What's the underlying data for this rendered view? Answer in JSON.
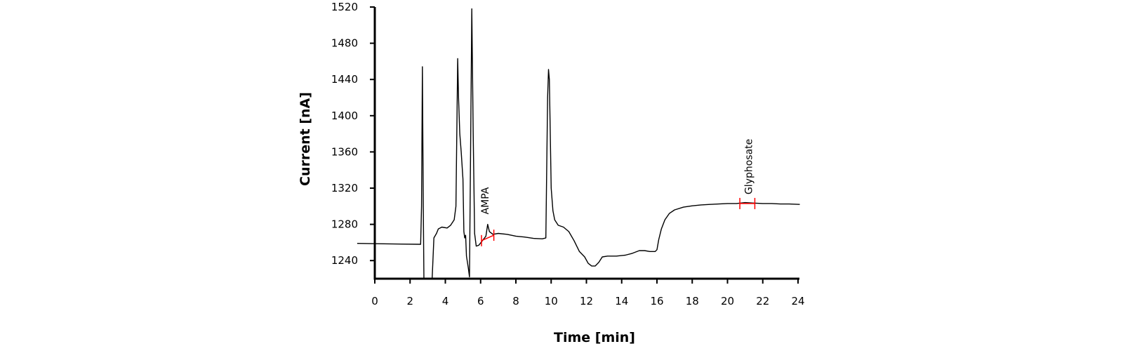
{
  "chart_data": {
    "type": "line",
    "title": "",
    "xlabel": "Time [min]",
    "ylabel": "Current [nA]",
    "xlim": [
      0,
      24
    ],
    "ylim": [
      1220,
      1520
    ],
    "xticks": [
      0,
      2,
      4,
      6,
      8,
      10,
      12,
      14,
      16,
      18,
      20,
      22,
      24
    ],
    "yticks": [
      1240,
      1280,
      1320,
      1360,
      1400,
      1440,
      1480,
      1520
    ],
    "grid": false,
    "series": [
      {
        "color": "#000000",
        "points": [
          [
            -1.0,
            1259
          ],
          [
            0.5,
            1258.5
          ],
          [
            1.5,
            1258.2
          ],
          [
            2.6,
            1258
          ],
          [
            2.65,
            1300
          ],
          [
            2.7,
            1454
          ],
          [
            2.75,
            1300
          ],
          [
            2.8,
            1180
          ],
          [
            3.2,
            1180
          ],
          [
            3.25,
            1220
          ],
          [
            3.35,
            1265
          ],
          [
            3.5,
            1270
          ],
          [
            3.6,
            1275
          ],
          [
            3.8,
            1277
          ],
          [
            4.1,
            1276
          ],
          [
            4.3,
            1279
          ],
          [
            4.5,
            1285
          ],
          [
            4.6,
            1300
          ],
          [
            4.7,
            1463
          ],
          [
            4.75,
            1420
          ],
          [
            4.82,
            1380
          ],
          [
            4.9,
            1360
          ],
          [
            5.0,
            1330
          ],
          [
            5.05,
            1272
          ],
          [
            5.1,
            1265
          ],
          [
            5.15,
            1268
          ],
          [
            5.2,
            1245
          ],
          [
            5.3,
            1232
          ],
          [
            5.37,
            1222
          ],
          [
            5.45,
            1400
          ],
          [
            5.5,
            1518
          ],
          [
            5.58,
            1380
          ],
          [
            5.66,
            1270
          ],
          [
            5.75,
            1256
          ],
          [
            5.9,
            1257
          ],
          [
            6.1,
            1262
          ],
          [
            6.3,
            1267
          ],
          [
            6.4,
            1280
          ],
          [
            6.5,
            1272
          ],
          [
            6.7,
            1269
          ],
          [
            7.0,
            1270
          ],
          [
            7.5,
            1269
          ],
          [
            8.0,
            1267
          ],
          [
            8.5,
            1266
          ],
          [
            9.0,
            1264.5
          ],
          [
            9.5,
            1264
          ],
          [
            9.7,
            1265
          ],
          [
            9.8,
            1420
          ],
          [
            9.85,
            1451
          ],
          [
            9.9,
            1440
          ],
          [
            10.0,
            1320
          ],
          [
            10.1,
            1295
          ],
          [
            10.2,
            1285
          ],
          [
            10.4,
            1279
          ],
          [
            10.7,
            1277
          ],
          [
            11.0,
            1272
          ],
          [
            11.3,
            1262
          ],
          [
            11.6,
            1250
          ],
          [
            11.9,
            1244
          ],
          [
            12.1,
            1237
          ],
          [
            12.3,
            1234
          ],
          [
            12.5,
            1234
          ],
          [
            12.7,
            1238
          ],
          [
            12.9,
            1244
          ],
          [
            13.2,
            1245
          ],
          [
            13.7,
            1245
          ],
          [
            14.2,
            1246
          ],
          [
            14.6,
            1248
          ],
          [
            15.0,
            1251
          ],
          [
            15.3,
            1251
          ],
          [
            15.6,
            1250
          ],
          [
            15.9,
            1250
          ],
          [
            16.0,
            1252
          ],
          [
            16.1,
            1263
          ],
          [
            16.25,
            1275
          ],
          [
            16.45,
            1285
          ],
          [
            16.7,
            1292
          ],
          [
            17.0,
            1296
          ],
          [
            17.5,
            1299
          ],
          [
            18.0,
            1300.5
          ],
          [
            18.5,
            1301.5
          ],
          [
            19.0,
            1302
          ],
          [
            19.5,
            1302.5
          ],
          [
            20.0,
            1303
          ],
          [
            20.5,
            1303
          ],
          [
            21.0,
            1304
          ],
          [
            21.5,
            1303.5
          ],
          [
            22.0,
            1303
          ],
          [
            22.5,
            1303
          ],
          [
            23.0,
            1302.5
          ],
          [
            23.5,
            1302.5
          ],
          [
            24.1,
            1302
          ]
        ]
      }
    ],
    "annotations": [
      {
        "text": "AMPA",
        "x": 6.25,
        "y": 1291,
        "color": "#ff0000",
        "marker_start": 6.05,
        "marker_end": 6.75,
        "marker_y1": 1262,
        "marker_y2": 1268
      },
      {
        "text": "Glyphosate",
        "x": 21.2,
        "y": 1313,
        "color": "#ff0000",
        "marker_start": 20.7,
        "marker_end": 21.55,
        "marker_y1": 1303,
        "marker_y2": 1303
      }
    ]
  }
}
